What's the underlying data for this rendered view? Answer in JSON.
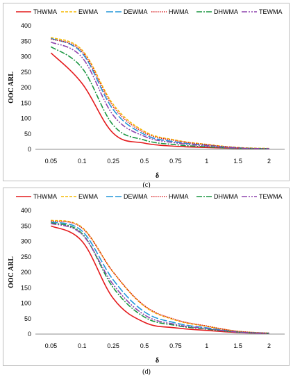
{
  "panels": [
    {
      "label": "(c)"
    },
    {
      "label": "(d)"
    }
  ],
  "chart_data": [
    {
      "type": "line",
      "panel": "(c)",
      "xlabel": "δ",
      "ylabel": "OOC ARL",
      "categories": [
        "0.05",
        "0.1",
        "0.25",
        "0.5",
        "0.75",
        "1",
        "1.5",
        "2"
      ],
      "ylim": [
        0,
        400
      ],
      "yticks": [
        0,
        50,
        100,
        150,
        200,
        250,
        300,
        350,
        400
      ],
      "grid": false,
      "legend": "top",
      "series": [
        {
          "name": "THWMA",
          "color": "#e41a1c",
          "dash": "",
          "values": [
            312,
            213,
            52,
            20,
            10,
            6,
            3,
            2
          ]
        },
        {
          "name": "EWMA",
          "color": "#f5b800",
          "dash": "4,2",
          "values": [
            362,
            321,
            145,
            58,
            30,
            16,
            6,
            3
          ]
        },
        {
          "name": "DEWMA",
          "color": "#2196d9",
          "dash": "10,3",
          "values": [
            359,
            311,
            128,
            48,
            24,
            13,
            5,
            2
          ]
        },
        {
          "name": "HWMA",
          "color": "#d7191c",
          "dash": "1.5,1.5",
          "values": [
            357,
            316,
            138,
            54,
            28,
            15,
            5,
            2
          ]
        },
        {
          "name": "DHWMA",
          "color": "#1a9641",
          "dash": "8,2,2,2",
          "values": [
            332,
            263,
            78,
            30,
            15,
            8,
            3,
            2
          ]
        },
        {
          "name": "TEWMA",
          "color": "#8e44ad",
          "dash": "8,2,2,2,2,2",
          "values": [
            347,
            297,
            110,
            42,
            21,
            11,
            4,
            2
          ]
        }
      ]
    },
    {
      "type": "line",
      "panel": "(d)",
      "xlabel": "δ",
      "ylabel": "OOC ARL",
      "categories": [
        "0.05",
        "0.1",
        "0.25",
        "0.5",
        "0.75",
        "1",
        "1.5",
        "2"
      ],
      "ylim": [
        0,
        400
      ],
      "yticks": [
        0,
        50,
        100,
        150,
        200,
        250,
        300,
        350,
        400
      ],
      "grid": false,
      "legend": "top",
      "series": [
        {
          "name": "THWMA",
          "color": "#e41a1c",
          "dash": "",
          "values": [
            350,
            300,
            115,
            38,
            20,
            12,
            5,
            2
          ]
        },
        {
          "name": "EWMA",
          "color": "#f5b800",
          "dash": "4,2",
          "values": [
            368,
            345,
            200,
            90,
            45,
            25,
            9,
            3
          ]
        },
        {
          "name": "DEWMA",
          "color": "#2196d9",
          "dash": "10,3",
          "values": [
            363,
            333,
            175,
            72,
            36,
            20,
            7,
            3
          ]
        },
        {
          "name": "HWMA",
          "color": "#d7191c",
          "dash": "1.5,1.5",
          "values": [
            366,
            343,
            200,
            92,
            47,
            26,
            9,
            3
          ]
        },
        {
          "name": "DHWMA",
          "color": "#1a9641",
          "dash": "8,2,2,2",
          "values": [
            360,
            325,
            150,
            55,
            28,
            16,
            6,
            2
          ]
        },
        {
          "name": "TEWMA",
          "color": "#8e44ad",
          "dash": "8,2,2,2,2,2",
          "values": [
            358,
            322,
            160,
            62,
            31,
            18,
            6,
            2
          ]
        }
      ]
    }
  ]
}
